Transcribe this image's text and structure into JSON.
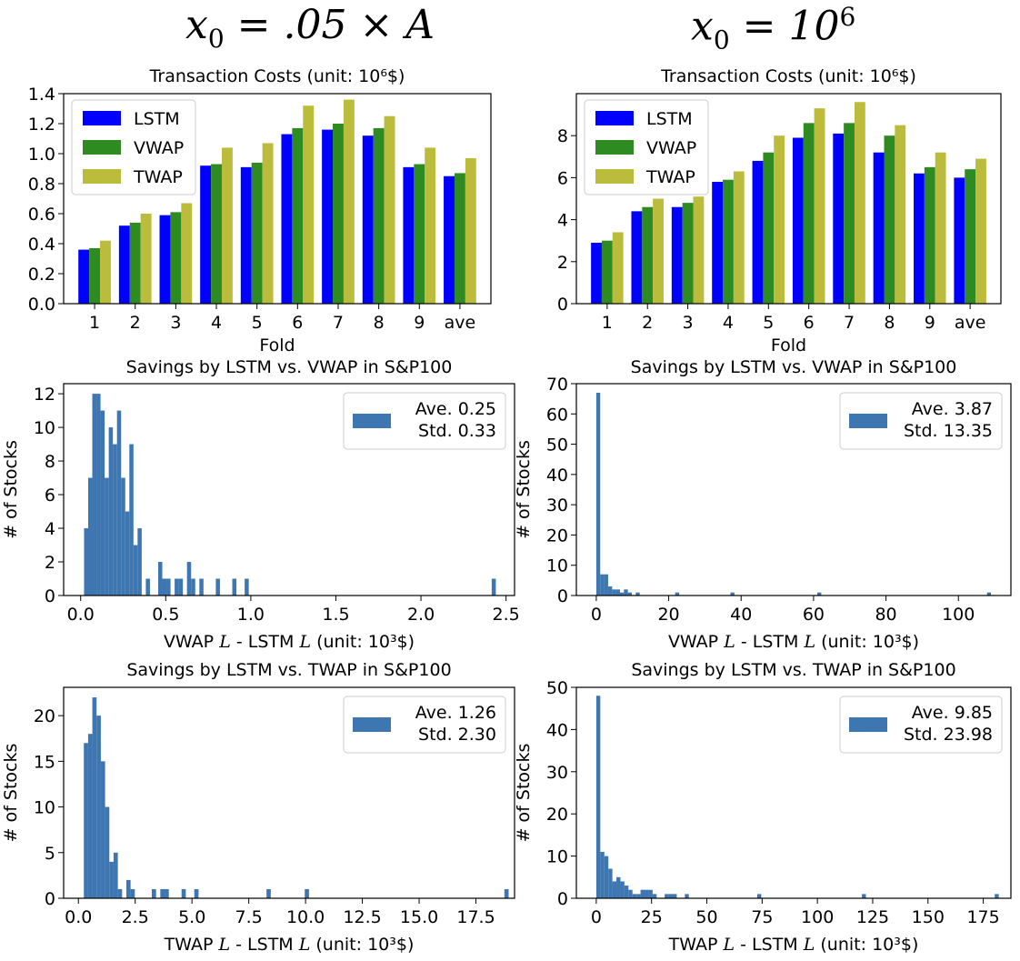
{
  "columns": {
    "left": {
      "base": "x",
      "subscript": "0",
      "rest": " = .05 × A"
    },
    "right": {
      "base": "x",
      "subscript": "0",
      "rest": " = 10",
      "superscript": "6"
    }
  },
  "colors": {
    "LSTM": "#0000ff",
    "VWAP": "#2e8b22",
    "TWAP": "#bcbc3c",
    "hist": "#3d76b1"
  },
  "chart_data": [
    {
      "type": "bar",
      "title": "Transaction Costs (unit: 10⁶$)",
      "xlabel": "Fold",
      "ylabel": "",
      "categories": [
        "1",
        "2",
        "3",
        "4",
        "5",
        "6",
        "7",
        "8",
        "9",
        "ave"
      ],
      "ylim": [
        0,
        1.4
      ],
      "yticks": [
        0.0,
        0.2,
        0.4,
        0.6,
        0.8,
        1.0,
        1.2,
        1.4
      ],
      "yticklabels": [
        "0.0",
        "0.2",
        "0.4",
        "0.6",
        "0.8",
        "1.0",
        "1.2",
        "1.4"
      ],
      "legend": "top-left",
      "series": [
        {
          "name": "LSTM",
          "values": [
            0.36,
            0.52,
            0.59,
            0.92,
            0.91,
            1.13,
            1.16,
            1.12,
            0.91,
            0.85
          ]
        },
        {
          "name": "VWAP",
          "values": [
            0.37,
            0.54,
            0.61,
            0.93,
            0.94,
            1.17,
            1.2,
            1.17,
            0.93,
            0.87
          ]
        },
        {
          "name": "TWAP",
          "values": [
            0.42,
            0.6,
            0.67,
            1.04,
            1.07,
            1.32,
            1.36,
            1.25,
            1.04,
            0.97
          ]
        }
      ]
    },
    {
      "type": "bar",
      "title": "Transaction Costs (unit: 10⁶$)",
      "xlabel": "Fold",
      "ylabel": "",
      "categories": [
        "1",
        "2",
        "3",
        "4",
        "5",
        "6",
        "7",
        "8",
        "9",
        "ave"
      ],
      "ylim": [
        0,
        10
      ],
      "yticks": [
        0,
        2,
        4,
        6,
        8
      ],
      "yticklabels": [
        "0",
        "2",
        "4",
        "6",
        "8"
      ],
      "legend": "top-left",
      "series": [
        {
          "name": "LSTM",
          "values": [
            2.9,
            4.4,
            4.6,
            5.8,
            6.8,
            7.9,
            8.1,
            7.2,
            6.2,
            6.0
          ]
        },
        {
          "name": "VWAP",
          "values": [
            3.0,
            4.6,
            4.8,
            5.9,
            7.2,
            8.6,
            8.6,
            8.0,
            6.5,
            6.4
          ]
        },
        {
          "name": "TWAP",
          "values": [
            3.4,
            5.0,
            5.1,
            6.3,
            8.0,
            9.3,
            9.6,
            8.5,
            7.2,
            6.9
          ]
        }
      ]
    },
    {
      "type": "histogram",
      "title": "Savings by LSTM vs. VWAP in S&P100",
      "xlabel": "VWAP L - LSTM L (unit: 10³$)",
      "ylabel": "# of Stocks",
      "xlim": [
        -0.1,
        2.55
      ],
      "ylim": [
        0,
        12.6
      ],
      "xticks": [
        0.0,
        0.5,
        1.0,
        1.5,
        2.0,
        2.5
      ],
      "xticklabels": [
        "0.0",
        "0.5",
        "1.0",
        "1.5",
        "2.0",
        "2.5"
      ],
      "yticks": [
        0,
        2,
        4,
        6,
        8,
        10,
        12
      ],
      "yticklabels": [
        "0",
        "2",
        "4",
        "6",
        "8",
        "10",
        "12"
      ],
      "bin_start": 0.02,
      "bin_width": 0.0242,
      "counts": [
        4,
        7,
        12,
        12,
        11,
        7,
        10,
        9,
        11,
        7,
        5,
        9,
        3,
        4,
        0,
        1,
        0,
        0,
        2,
        1,
        1,
        0,
        1,
        1,
        0,
        2,
        1,
        0,
        1,
        0,
        0,
        0,
        1,
        0,
        0,
        0,
        1,
        0,
        0,
        1,
        0,
        0,
        0,
        0,
        0,
        0,
        0,
        0,
        0,
        0,
        0,
        0,
        0,
        0,
        0,
        0,
        0,
        0,
        0,
        0,
        0,
        0,
        0,
        0,
        0,
        0,
        0,
        0,
        0,
        0,
        0,
        0,
        0,
        0,
        0,
        0,
        0,
        0,
        0,
        0,
        0,
        0,
        0,
        0,
        0,
        0,
        0,
        0,
        0,
        0,
        0,
        0,
        0,
        0,
        0,
        0,
        0,
        0,
        0,
        1
      ],
      "legend": {
        "labels": [
          "Ave. 0.25",
          "Std. 0.33"
        ],
        "position": "top-right"
      }
    },
    {
      "type": "histogram",
      "title": "Savings by LSTM vs. VWAP in S&P100",
      "xlabel": "VWAP L - LSTM L (unit: 10³$)",
      "ylabel": "# of Stocks",
      "xlim": [
        -5.5,
        114.5
      ],
      "ylim": [
        0,
        70
      ],
      "xticks": [
        0,
        20,
        40,
        60,
        80,
        100
      ],
      "xticklabels": [
        "0",
        "20",
        "40",
        "60",
        "80",
        "100"
      ],
      "yticks": [
        0,
        10,
        20,
        30,
        40,
        50,
        60,
        70
      ],
      "yticklabels": [
        "0",
        "10",
        "20",
        "30",
        "40",
        "50",
        "60",
        "70"
      ],
      "bin_start": 0.0,
      "bin_width": 1.09,
      "counts": [
        67,
        7,
        7,
        3,
        2,
        2,
        1,
        2,
        1,
        0,
        1,
        0,
        0,
        0,
        0,
        0,
        0,
        0,
        0,
        0,
        1,
        0,
        0,
        0,
        0,
        0,
        0,
        0,
        0,
        0,
        0,
        0,
        0,
        0,
        1,
        0,
        0,
        0,
        0,
        0,
        0,
        0,
        0,
        0,
        0,
        0,
        0,
        0,
        0,
        0,
        0,
        0,
        0,
        0,
        0,
        0,
        1,
        0,
        0,
        0,
        0,
        0,
        0,
        0,
        0,
        0,
        0,
        0,
        0,
        0,
        0,
        0,
        0,
        0,
        0,
        0,
        0,
        0,
        0,
        0,
        0,
        0,
        0,
        0,
        0,
        0,
        0,
        0,
        0,
        0,
        0,
        0,
        0,
        0,
        0,
        0,
        0,
        0,
        0,
        1
      ],
      "legend": {
        "labels": [
          "Ave. 3.87",
          "Std. 13.35"
        ],
        "position": "top-right"
      }
    },
    {
      "type": "histogram",
      "title": "Savings by LSTM vs. TWAP in S&P100",
      "xlabel": "TWAP L - LSTM L (unit: 10³$)",
      "ylabel": "# of Stocks",
      "xlim": [
        -0.65,
        19.2
      ],
      "ylim": [
        0,
        23.1
      ],
      "xticks": [
        0.0,
        2.5,
        5.0,
        7.5,
        10.0,
        12.5,
        15.0,
        17.5
      ],
      "xticklabels": [
        "0.0",
        "2.5",
        "5.0",
        "7.5",
        "10.0",
        "12.5",
        "15.0",
        "17.5"
      ],
      "yticks": [
        0,
        5,
        10,
        15,
        20
      ],
      "yticklabels": [
        "0",
        "5",
        "10",
        "15",
        "20"
      ],
      "bin_start": 0.24,
      "bin_width": 0.187,
      "counts": [
        17,
        18,
        22,
        20,
        15,
        10,
        4,
        5,
        1,
        0,
        2,
        1,
        0,
        0,
        0,
        0,
        1,
        0,
        1,
        1,
        0,
        0,
        0,
        1,
        0,
        0,
        1,
        0,
        0,
        0,
        0,
        0,
        0,
        0,
        0,
        0,
        0,
        0,
        0,
        0,
        0,
        0,
        0,
        1,
        0,
        0,
        0,
        0,
        0,
        0,
        0,
        0,
        1,
        0,
        0,
        0,
        0,
        0,
        0,
        0,
        0,
        0,
        0,
        0,
        0,
        0,
        0,
        0,
        0,
        0,
        0,
        0,
        0,
        0,
        0,
        0,
        0,
        0,
        0,
        0,
        0,
        0,
        0,
        0,
        0,
        0,
        0,
        0,
        0,
        0,
        0,
        0,
        0,
        0,
        0,
        0,
        0,
        0,
        0,
        1
      ],
      "legend": {
        "labels": [
          "Ave. 1.26",
          "Std. 2.30"
        ],
        "position": "top-right"
      }
    },
    {
      "type": "histogram",
      "title": "Savings by LSTM vs. TWAP in S&P100",
      "xlabel": "TWAP L - LSTM L (unit: 10³$)",
      "ylabel": "# of Stocks",
      "xlim": [
        -9.0,
        187.5
      ],
      "ylim": [
        0,
        50
      ],
      "xticks": [
        0,
        25,
        50,
        75,
        100,
        125,
        150,
        175
      ],
      "xticklabels": [
        "0",
        "25",
        "50",
        "75",
        "100",
        "125",
        "150",
        "175"
      ],
      "yticks": [
        0,
        10,
        20,
        30,
        40,
        50
      ],
      "yticklabels": [
        "0",
        "10",
        "20",
        "30",
        "40",
        "50"
      ],
      "bin_start": 0.0,
      "bin_width": 1.82,
      "counts": [
        48,
        11,
        10,
        7,
        4,
        5,
        4,
        3,
        2,
        1,
        1,
        2,
        2,
        2,
        1,
        0,
        0,
        1,
        1,
        1,
        0,
        0,
        1,
        0,
        0,
        0,
        0,
        0,
        0,
        0,
        0,
        0,
        0,
        0,
        0,
        0,
        0,
        0,
        0,
        0,
        1,
        0,
        0,
        0,
        0,
        0,
        0,
        0,
        0,
        0,
        0,
        0,
        0,
        0,
        0,
        0,
        0,
        0,
        0,
        0,
        0,
        0,
        0,
        0,
        0,
        0,
        1,
        0,
        0,
        0,
        0,
        0,
        0,
        0,
        0,
        0,
        0,
        0,
        0,
        0,
        0,
        0,
        0,
        0,
        0,
        0,
        0,
        0,
        0,
        0,
        0,
        0,
        0,
        0,
        0,
        0,
        0,
        0,
        0,
        1
      ],
      "legend": {
        "labels": [
          "Ave. 9.85",
          "Std. 23.98"
        ],
        "position": "top-right"
      }
    }
  ]
}
